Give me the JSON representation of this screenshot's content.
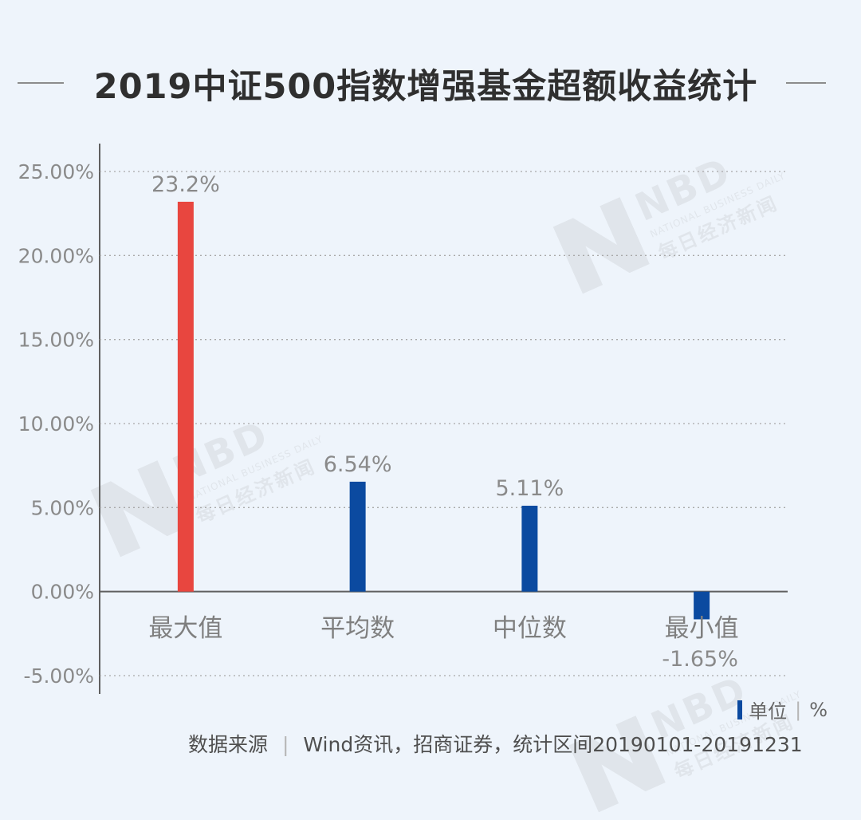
{
  "watermark": {
    "logo_text": "NBD",
    "subtitle": "NATIONAL BUSINESS DAILY",
    "chinese": "每日经济新闻"
  },
  "header": {
    "title": "2019中证500指数增强基金超额收益统计"
  },
  "chart_data": {
    "type": "bar",
    "title": "2019中证500指数增强基金超额收益统计",
    "categories": [
      "最大值",
      "平均数",
      "中位数",
      "最小值"
    ],
    "values": [
      23.2,
      6.54,
      5.11,
      -1.65
    ],
    "data_labels": [
      "23.2%",
      "6.54%",
      "5.11%",
      "-1.65%"
    ],
    "bar_colors": [
      "#e8463f",
      "#0b4aa0",
      "#0b4aa0",
      "#0b4aa0"
    ],
    "y_ticks": [
      -5,
      0,
      5,
      10,
      15,
      20,
      25
    ],
    "y_tick_labels": [
      "-5.00%",
      "0.00%",
      "5.00%",
      "10.00%",
      "15.00%",
      "20.00%",
      "25.00%"
    ],
    "ylim": [
      -5,
      25
    ],
    "grid": "dotted horizontal",
    "xlabel": "",
    "ylabel": ""
  },
  "legend": {
    "unit_label": "单位",
    "unit_value": "%"
  },
  "source": {
    "label": "数据来源",
    "text": "Wind资讯，招商证券，统计区间20190101-20191231"
  }
}
